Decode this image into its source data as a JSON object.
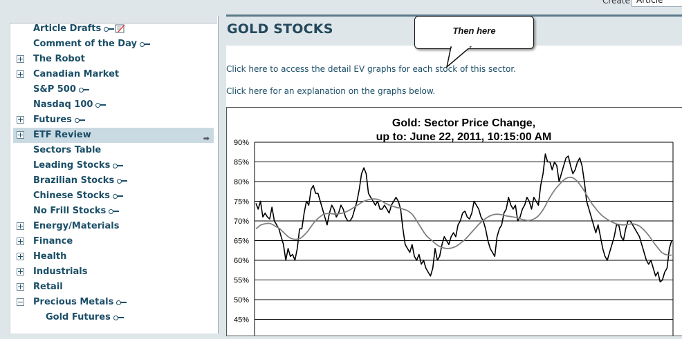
{
  "create": {
    "label": "Create",
    "select_value": "Article"
  },
  "sidebar": {
    "items": [
      {
        "label": "Article Drafts",
        "icon": "key-icon",
        "extra_icon": "draft-icon",
        "expandable": false
      },
      {
        "label": "Comment of the Day",
        "icon": "key-icon",
        "expandable": false
      },
      {
        "label": "The Robot",
        "expandable": true
      },
      {
        "label": "Canadian Market",
        "expandable": true
      },
      {
        "label": "S&P 500",
        "icon": "key-icon",
        "expandable": false
      },
      {
        "label": "Nasdaq 100",
        "icon": "key-icon",
        "expandable": false
      },
      {
        "label": "Futures",
        "icon": "key-icon",
        "expandable": true
      },
      {
        "label": "ETF Review",
        "expandable": true,
        "active": true
      },
      {
        "label": "Sectors Table",
        "expandable": false
      },
      {
        "label": "Leading Stocks",
        "icon": "key-icon",
        "expandable": false
      },
      {
        "label": "Brazilian Stocks",
        "icon": "key-icon",
        "expandable": false
      },
      {
        "label": "Chinese Stocks",
        "icon": "key-icon",
        "expandable": false
      },
      {
        "label": "No Frill Stocks",
        "icon": "key-icon",
        "expandable": false
      },
      {
        "label": "Energy/Materials",
        "expandable": true
      },
      {
        "label": "Finance",
        "expandable": true
      },
      {
        "label": "Health",
        "expandable": true
      },
      {
        "label": "Industrials",
        "expandable": true
      },
      {
        "label": "Retail",
        "expandable": true
      },
      {
        "label": "Precious Metals",
        "icon": "key-icon",
        "expandable": true,
        "expanded": true
      },
      {
        "label": "Gold Futures",
        "icon": "key-icon",
        "expandable": false,
        "sub": true
      }
    ]
  },
  "main": {
    "title": "GOLD STOCKS",
    "link1": "Click here to access the detail EV graphs for each stock of this sector.",
    "link2": "Click here for an explanation on the graphs below.",
    "callout": "Then here"
  },
  "chart_data": {
    "type": "line",
    "title": "Gold: Sector Price Change,",
    "subtitle": "up to: June 22, 2011, 10:15:00 AM",
    "ylabel": "",
    "xlabel": "",
    "y_ticks": [
      "90%",
      "85%",
      "80%",
      "75%",
      "70%",
      "65%",
      "60%",
      "55%",
      "50%",
      "45%"
    ],
    "ylim": [
      45,
      90
    ],
    "grid": true,
    "series": [
      {
        "color": "#000000",
        "values": [
          74.5,
          73,
          75,
          71,
          72,
          71,
          70.5,
          73.5,
          70,
          69,
          68,
          66,
          64,
          60,
          63,
          61,
          61.5,
          60,
          63,
          68,
          68,
          72,
          75,
          74,
          78,
          79,
          77,
          77,
          75,
          73,
          71,
          69,
          72,
          74,
          73,
          71,
          72,
          74,
          73,
          71,
          70,
          70,
          71,
          73,
          75,
          78,
          82,
          83.5,
          82,
          77,
          76,
          75,
          74,
          75,
          73,
          73,
          74,
          73,
          72,
          74,
          75,
          76,
          75,
          73,
          68,
          64,
          63,
          62,
          64,
          61,
          60,
          61.5,
          59,
          60,
          58,
          57,
          56,
          58,
          63,
          60,
          61,
          64,
          66,
          65,
          64,
          66,
          67,
          66,
          69,
          70,
          72,
          72.5,
          71,
          70.5,
          72,
          75,
          74,
          73,
          71,
          70,
          68,
          65,
          63,
          62,
          61,
          66,
          68,
          69,
          72,
          73,
          76,
          74,
          73,
          74,
          70,
          71,
          73,
          74,
          76,
          75,
          73,
          76,
          75,
          74,
          79,
          82,
          87,
          85,
          85,
          83,
          85,
          84,
          80,
          82,
          84,
          86,
          86.5,
          84,
          82,
          83,
          85,
          86,
          84,
          80,
          75,
          73,
          71,
          69,
          67,
          69,
          66,
          63,
          61,
          60,
          62,
          64,
          66,
          69,
          69,
          66,
          65,
          68,
          70,
          70,
          69,
          68,
          67,
          66,
          64,
          62,
          60,
          59,
          60,
          58,
          56,
          57,
          54.5,
          55,
          57,
          58,
          63,
          65
        ]
      },
      {
        "color": "#808080",
        "values": [
          68,
          68.5,
          69,
          69.2,
          69.3,
          69.4,
          69.3,
          69,
          68.6,
          68.3,
          67.8,
          67.2,
          66.6,
          66,
          65.6,
          65.4,
          65.3,
          65.4,
          65.6,
          66.1,
          66.7,
          67.4,
          68.3,
          69.2,
          70,
          70.6,
          71.1,
          71.6,
          71.8,
          71.9,
          71.9,
          71.8,
          71.7,
          71.8,
          71.9,
          72,
          72.2,
          72.5,
          72.8,
          73.2,
          73.6,
          74,
          74.4,
          74.8,
          75.1,
          75.3,
          75.5,
          75.6,
          75.6,
          75.5,
          75.3,
          75,
          74.6,
          74.3,
          74,
          73.8,
          73.6,
          73.4,
          73.3,
          73.1,
          72.9,
          72.7,
          72.3,
          71.8,
          71,
          70,
          69,
          68,
          67,
          66.2,
          65.6,
          65.1,
          64.5,
          64,
          63.6,
          63.3,
          63.1,
          63,
          63,
          63.1,
          63.3,
          63.6,
          64,
          64.5,
          65,
          65.6,
          66.3,
          67,
          67.7,
          68.4,
          69.1,
          69.7,
          70.2,
          70.7,
          71.1,
          71.4,
          71.6,
          71.7,
          71.7,
          71.6,
          71.5,
          71.3,
          71.2,
          71.1,
          71,
          70.9,
          70.7,
          70.5,
          70.3,
          70.2,
          70.1,
          70.2,
          70.4,
          70.7,
          71.2,
          71.9,
          72.8,
          73.9,
          75.1,
          76.2,
          77.2,
          78.1,
          78.8,
          79.5,
          80.2,
          80.7,
          81,
          81.1,
          81,
          80.6,
          80,
          79.2,
          78.3,
          77.3,
          76.2,
          75.2,
          74.2,
          73.4,
          72.6,
          71.9,
          71.3,
          70.8,
          70.4,
          70,
          69.7,
          69.4,
          69.2,
          69.1,
          69,
          69,
          69.1,
          69.2,
          69.3,
          69.2,
          69,
          68.7,
          68.2,
          67.6,
          66.9,
          66.1,
          65.2,
          64.3,
          63.5,
          62.7,
          62,
          61.6,
          61.4,
          61.3,
          61.3
        ]
      }
    ]
  }
}
